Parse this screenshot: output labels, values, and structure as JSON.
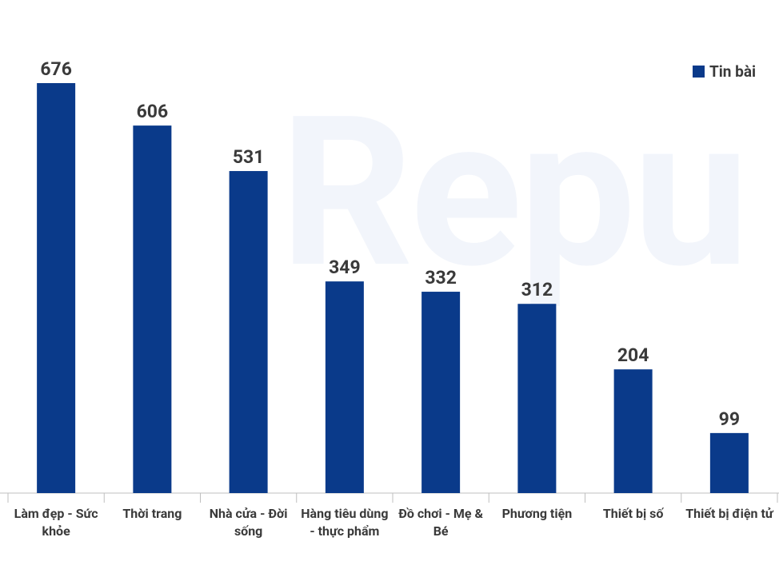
{
  "chart_data": {
    "type": "bar",
    "watermark": "Repu",
    "categories": [
      "Làm đẹp - Sức khỏe",
      "Thời trang",
      "Nhà cửa - Đời sống",
      "Hàng tiêu dùng - thực phẩm",
      "Đồ chơi - Mẹ & Bé",
      "Phương tiện",
      "Thiết bị số",
      "Thiết bị điện tử"
    ],
    "series": [
      {
        "name": "Tin bài",
        "color": "#0a3a8a",
        "values": [
          676,
          606,
          531,
          349,
          332,
          312,
          204,
          99
        ]
      }
    ],
    "legend": "top-right"
  }
}
